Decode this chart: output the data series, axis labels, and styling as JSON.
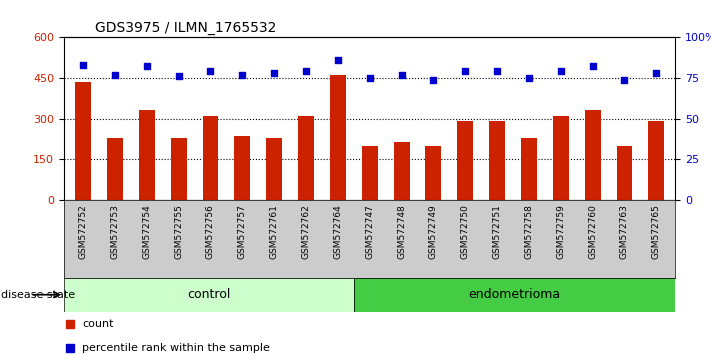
{
  "title": "GDS3975 / ILMN_1765532",
  "samples": [
    "GSM572752",
    "GSM572753",
    "GSM572754",
    "GSM572755",
    "GSM572756",
    "GSM572757",
    "GSM572761",
    "GSM572762",
    "GSM572764",
    "GSM572747",
    "GSM572748",
    "GSM572749",
    "GSM572750",
    "GSM572751",
    "GSM572758",
    "GSM572759",
    "GSM572760",
    "GSM572763",
    "GSM572765"
  ],
  "counts": [
    435,
    230,
    330,
    230,
    310,
    235,
    230,
    310,
    460,
    200,
    215,
    200,
    290,
    290,
    230,
    310,
    330,
    200,
    290
  ],
  "percentiles": [
    83,
    77,
    82,
    76,
    79,
    77,
    78,
    79,
    86,
    75,
    77,
    74,
    79,
    79,
    75,
    79,
    82,
    74,
    78
  ],
  "group": [
    "control",
    "control",
    "control",
    "control",
    "control",
    "control",
    "control",
    "control",
    "control",
    "endometrioma",
    "endometrioma",
    "endometrioma",
    "endometrioma",
    "endometrioma",
    "endometrioma",
    "endometrioma",
    "endometrioma",
    "endometrioma",
    "endometrioma"
  ],
  "ylim_left": [
    0,
    600
  ],
  "ylim_right": [
    0,
    100
  ],
  "yticks_left": [
    0,
    150,
    300,
    450,
    600
  ],
  "yticks_right": [
    0,
    25,
    50,
    75,
    100
  ],
  "bar_color": "#cc2200",
  "dot_color": "#0000cc",
  "control_color": "#ccffcc",
  "endo_color": "#44cc44",
  "bg_color": "#cccccc",
  "label_count": "count",
  "label_pct": "percentile rank within the sample",
  "xlabel_disease": "disease state"
}
